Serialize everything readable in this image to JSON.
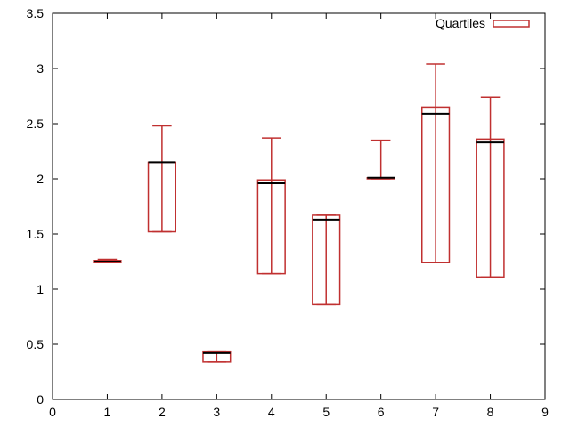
{
  "chart_data": {
    "type": "boxplot",
    "title": "",
    "xlabel": "",
    "ylabel": "",
    "xlim": [
      0,
      9
    ],
    "ylim": [
      0,
      3.5
    ],
    "xticks": [
      0,
      1,
      2,
      3,
      4,
      5,
      6,
      7,
      8,
      9
    ],
    "yticks": [
      0,
      0.5,
      1,
      1.5,
      2,
      2.5,
      3,
      3.5
    ],
    "ytick_labels": [
      "0",
      "0.5",
      "1",
      "1.5",
      "2",
      "2.5",
      "3",
      "3.5"
    ],
    "grid": false,
    "legend": {
      "position": "top-right",
      "entries": [
        "Quartiles"
      ]
    },
    "series": [
      {
        "name": "Quartiles",
        "color": "#c03030",
        "median_color": "#000000",
        "boxes": [
          {
            "x": 1,
            "min": 1.24,
            "q1": 1.24,
            "median": 1.25,
            "q3": 1.26,
            "max": 1.27
          },
          {
            "x": 2,
            "min": 1.52,
            "q1": 1.52,
            "median": 2.15,
            "q3": 2.15,
            "max": 2.48
          },
          {
            "x": 3,
            "min": 0.34,
            "q1": 0.34,
            "median": 0.42,
            "q3": 0.43,
            "max": 0.43
          },
          {
            "x": 4,
            "min": 1.14,
            "q1": 1.14,
            "median": 1.96,
            "q3": 1.99,
            "max": 2.37
          },
          {
            "x": 5,
            "min": 0.86,
            "q1": 0.86,
            "median": 1.63,
            "q3": 1.67,
            "max": 1.67
          },
          {
            "x": 6,
            "min": 2.0,
            "q1": 2.0,
            "median": 2.01,
            "q3": 2.01,
            "max": 2.35
          },
          {
            "x": 7,
            "min": 1.24,
            "q1": 1.24,
            "median": 2.59,
            "q3": 2.65,
            "max": 3.04
          },
          {
            "x": 8,
            "min": 1.11,
            "q1": 1.11,
            "median": 2.33,
            "q3": 2.36,
            "max": 2.74
          }
        ]
      }
    ]
  }
}
